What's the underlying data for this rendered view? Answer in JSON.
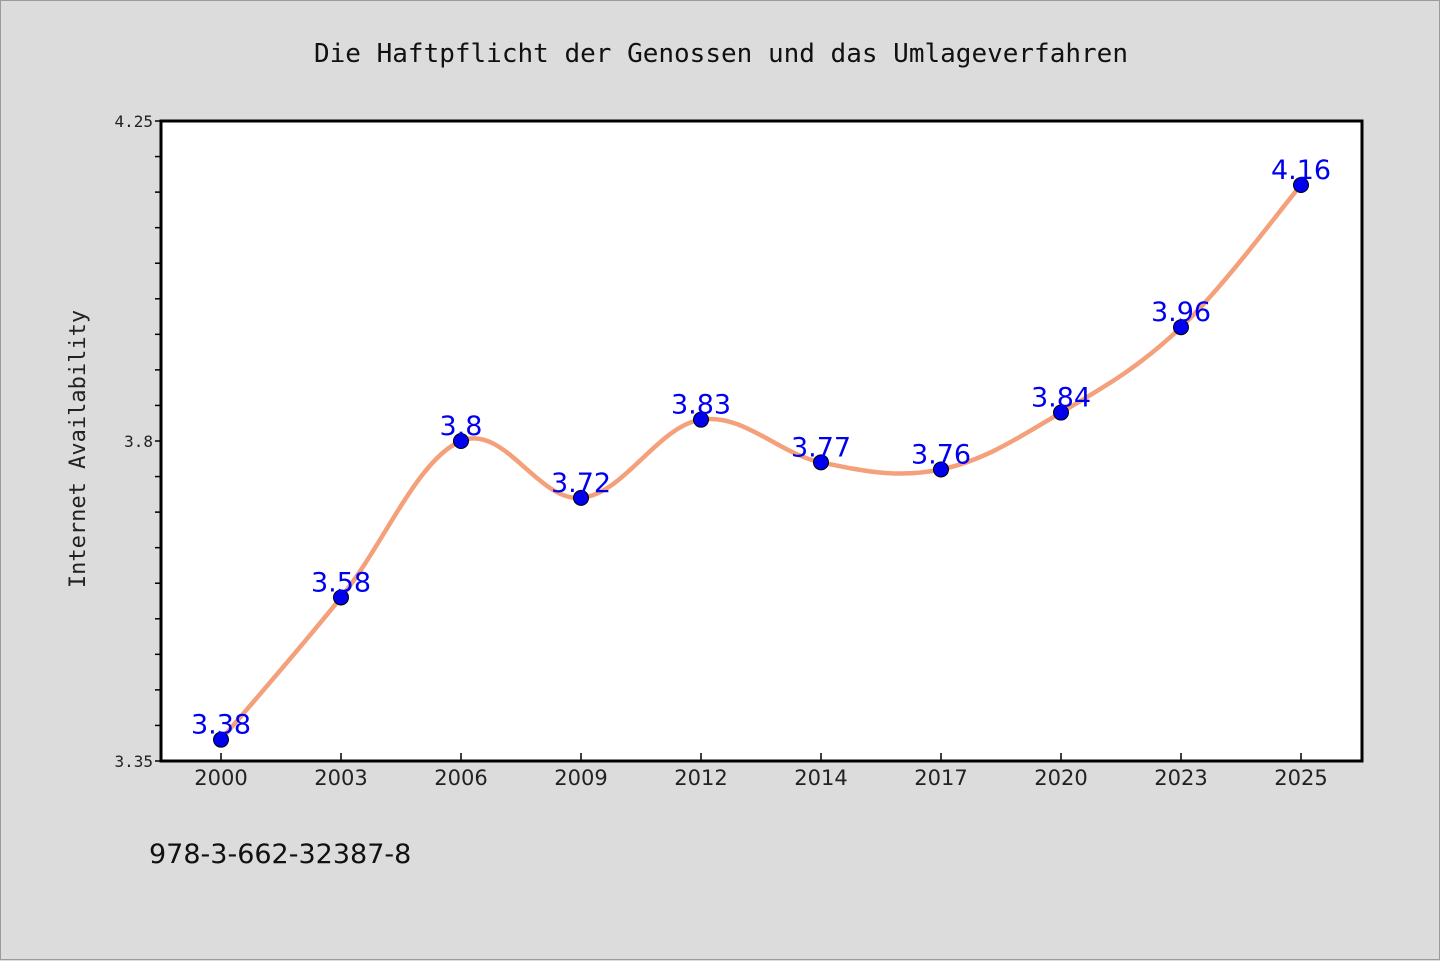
{
  "chart_data": {
    "type": "line",
    "title": "Die Haftpflicht der Genossen und das Umlageverfahren",
    "xlabel": "",
    "ylabel": "Internet Availability",
    "categories": [
      "2000",
      "2003",
      "2006",
      "2009",
      "2012",
      "2014",
      "2017",
      "2020",
      "2023",
      "2025"
    ],
    "series": [
      {
        "values": [
          3.38,
          3.58,
          3.8,
          3.72,
          3.83,
          3.77,
          3.76,
          3.84,
          3.96,
          4.16
        ],
        "labels": [
          "3.38",
          "3.58",
          "3.8",
          "3.72",
          "3.83",
          "3.77",
          "3.76",
          "3.84",
          "3.96",
          "4.16"
        ]
      }
    ],
    "ylim": [
      3.35,
      4.25
    ],
    "yticks_labeled": [
      "3.35",
      "3.8",
      "4.25"
    ],
    "yminor_step": 0.05,
    "grid": false,
    "legend": "none",
    "colors": {
      "line": "#f4a07a",
      "marker": "#0000ee",
      "label": "#0000ee",
      "plot_bg": "#ffffff",
      "page_bg": "#dcdcdc"
    }
  },
  "footnote": "978-3-662-32387-8"
}
